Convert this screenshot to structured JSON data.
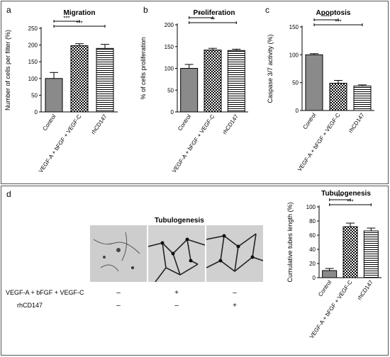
{
  "panels": {
    "a": {
      "letter": "a"
    },
    "b": {
      "letter": "b"
    },
    "c": {
      "letter": "c"
    },
    "d": {
      "letter": "d"
    }
  },
  "chart_data": [
    {
      "id": "migration",
      "type": "bar",
      "title": "Migration",
      "ylabel": "Number of cells per filter (%)",
      "categories": [
        "Control",
        "VEGF-A + bFGF + VEGF-C",
        "rhCD147"
      ],
      "values": [
        100,
        198,
        190
      ],
      "errors": [
        18,
        6,
        12
      ],
      "ylim": [
        0,
        250
      ],
      "yticks": [
        0,
        50,
        100,
        150,
        200,
        250
      ],
      "significance": [
        {
          "from": 0,
          "to": 1,
          "label": "***"
        },
        {
          "from": 0,
          "to": 2,
          "label": "***"
        }
      ]
    },
    {
      "id": "proliferation",
      "type": "bar",
      "title": "Proliferation",
      "ylabel": "% of cells proliferation",
      "categories": [
        "Control",
        "VEGF-A + bFGF + VEGF-C",
        "rhCD147"
      ],
      "values": [
        100,
        142,
        141
      ],
      "errors": [
        9,
        4,
        3
      ],
      "ylim": [
        0,
        200
      ],
      "yticks": [
        0,
        50,
        100,
        150,
        200
      ],
      "significance": [
        {
          "from": 0,
          "to": 1,
          "label": "**"
        },
        {
          "from": 0,
          "to": 2,
          "label": "**"
        }
      ]
    },
    {
      "id": "apoptosis",
      "type": "bar",
      "title": "Apoptosis",
      "ylabel": "Caspase 3/7 activity (%)",
      "categories": [
        "Control",
        "VEGF-A + bFGF + VEGF-C",
        "rhCD147"
      ],
      "values": [
        100,
        49,
        44
      ],
      "errors": [
        2,
        5,
        2
      ],
      "ylim": [
        0,
        150
      ],
      "yticks": [
        0,
        50,
        100,
        150
      ],
      "significance": [
        {
          "from": 0,
          "to": 1,
          "label": "***"
        },
        {
          "from": 0,
          "to": 2,
          "label": "***"
        }
      ]
    },
    {
      "id": "tubulogenesis",
      "type": "bar",
      "title": "Tubulogenesis",
      "ylabel": "Cumulative tubes length (%)",
      "categories": [
        "Control",
        "VEGF-A + bFGF + VEGF-C",
        "rhCD147"
      ],
      "values": [
        10,
        72,
        66
      ],
      "errors": [
        3,
        5,
        4
      ],
      "ylim": [
        0,
        100
      ],
      "yticks": [
        0,
        20,
        40,
        60,
        80,
        100
      ],
      "significance": [
        {
          "from": 0,
          "to": 1,
          "label": "***"
        },
        {
          "from": 0,
          "to": 2,
          "label": "***"
        }
      ]
    }
  ],
  "micrographs": {
    "title": "Tubulogenesis",
    "conditions": [
      {
        "label": "VEGF-A + bFGF + VEGF-C",
        "marks": [
          "–",
          "+",
          "–"
        ]
      },
      {
        "label": "rhCD147",
        "marks": [
          "–",
          "–",
          "+"
        ]
      }
    ]
  },
  "colors": {
    "frame": "#555555",
    "bar_stroke": "#000000",
    "micro_bg": "#c9c9c9"
  }
}
